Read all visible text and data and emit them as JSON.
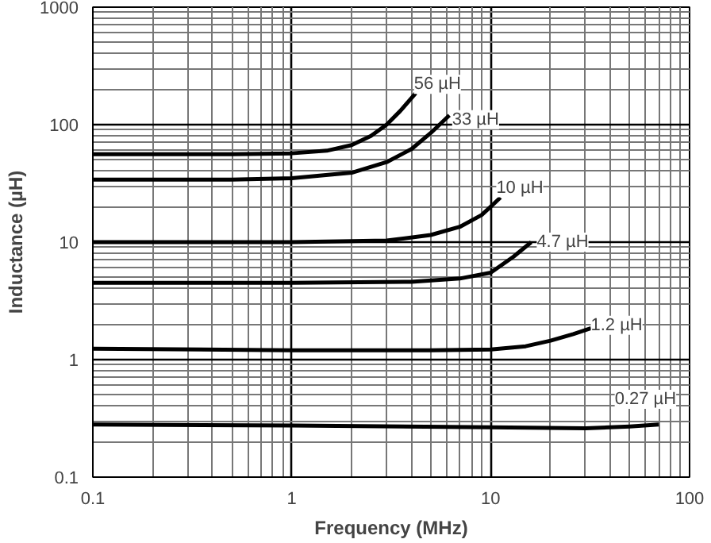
{
  "chart_data": {
    "type": "line",
    "xlabel": "Frequency (MHz)",
    "ylabel": "Inductance (µH)",
    "log": "xy",
    "grid": true,
    "marker": "none",
    "line_style": "solid",
    "xlim": [
      0.1,
      100
    ],
    "ylim": [
      0.1,
      1000
    ],
    "xticks": [
      0.1,
      1,
      10,
      100
    ],
    "yticks": [
      0.1,
      1,
      10,
      100,
      1000
    ],
    "series": [
      {
        "color": "#000000",
        "x": [
          0.1,
          0.5,
          1,
          1.5,
          2,
          2.5,
          3,
          3.5,
          4.2
        ],
        "values": [
          56,
          56,
          57,
          60,
          67,
          80,
          100,
          130,
          185
        ]
      },
      {
        "color": "#000000",
        "x": [
          0.1,
          0.5,
          1,
          2,
          3,
          4,
          5,
          6.2
        ],
        "values": [
          34,
          34,
          35,
          39,
          48,
          62,
          85,
          120
        ]
      },
      {
        "color": "#000000",
        "x": [
          0.1,
          1,
          3,
          5,
          7,
          9,
          10,
          11.2
        ],
        "values": [
          10,
          10,
          10.3,
          11.5,
          13.5,
          17,
          20,
          24
        ]
      },
      {
        "color": "#000000",
        "x": [
          0.1,
          1,
          4,
          7,
          10,
          13,
          16
        ],
        "values": [
          4.5,
          4.5,
          4.6,
          4.9,
          5.5,
          7.5,
          10
        ]
      },
      {
        "color": "#000000",
        "x": [
          0.1,
          1,
          5,
          10,
          15,
          20,
          26,
          32
        ],
        "values": [
          1.24,
          1.2,
          1.2,
          1.22,
          1.3,
          1.45,
          1.65,
          1.85
        ]
      },
      {
        "color": "#000000",
        "x": [
          0.1,
          1,
          10,
          30,
          50,
          70
        ],
        "values": [
          0.28,
          0.275,
          0.265,
          0.26,
          0.27,
          0.28
        ]
      }
    ],
    "annotations": [
      {
        "text": "56 µH",
        "x": 5.4,
        "y": 220
      },
      {
        "text": "33 µH",
        "x": 8.4,
        "y": 110
      },
      {
        "text": "10 µH",
        "x": 14,
        "y": 29
      },
      {
        "text": "4.7 µH",
        "x": 23,
        "y": 10
      },
      {
        "text": "1.2 µH",
        "x": 43,
        "y": 1.96
      },
      {
        "text": "0.27 µH",
        "x": 60,
        "y": 0.46
      }
    ]
  }
}
